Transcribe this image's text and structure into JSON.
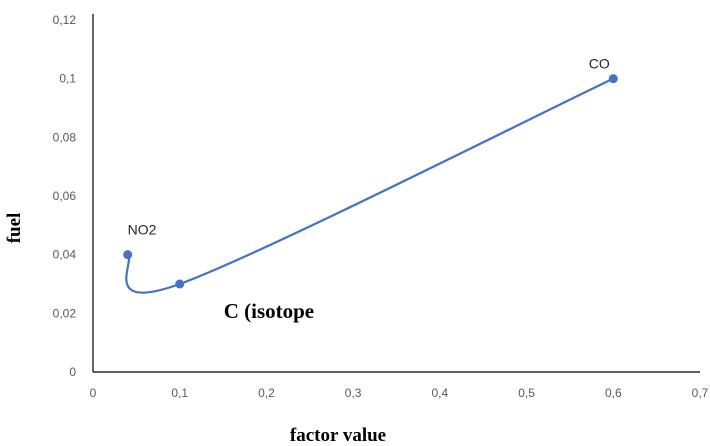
{
  "chart_data": {
    "type": "line",
    "title": "",
    "xlabel": "factor value",
    "ylabel": "fuel",
    "xlim": [
      0,
      0.7
    ],
    "ylim": [
      0,
      0.12
    ],
    "x_ticks": [
      "0",
      "0,1",
      "0,2",
      "0,3",
      "0,4",
      "0,5",
      "0,6",
      "0,7"
    ],
    "y_ticks": [
      "0",
      "0,02",
      "0,04",
      "0,06",
      "0,08",
      "0,1",
      "0,12"
    ],
    "grid": false,
    "smooth": true,
    "series": [
      {
        "color": "#4472C4",
        "points": [
          {
            "label": "NO2",
            "x": 0.04,
            "y": 0.04
          },
          {
            "label": "C (isotope",
            "x": 0.1,
            "y": 0.03
          },
          {
            "label": "CO",
            "x": 0.6,
            "y": 0.1
          }
        ]
      }
    ]
  }
}
